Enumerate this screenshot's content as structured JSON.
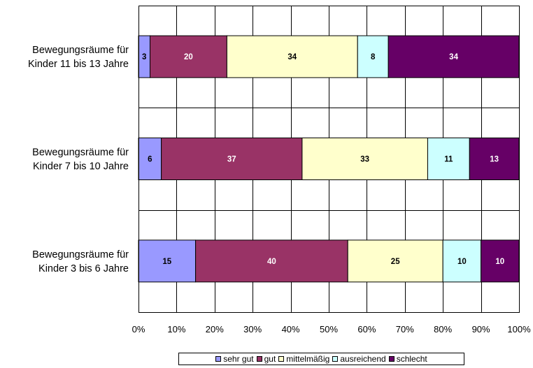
{
  "chart_data": {
    "type": "bar",
    "orientation": "horizontal",
    "stacked": "percent",
    "categories": [
      [
        "Bewegungsräume für",
        "Kinder 11 bis 13 Jahre"
      ],
      [
        "Bewegungsräume für",
        "Kinder 7 bis 10 Jahre"
      ],
      [
        "Bewegungsräume für",
        "Kinder 3 bis 6 Jahre"
      ]
    ],
    "series": [
      {
        "name": "sehr gut",
        "values": [
          3,
          6,
          15
        ],
        "color": "#9999ff",
        "label_color": "#000000"
      },
      {
        "name": "gut",
        "values": [
          20,
          37,
          40
        ],
        "color": "#993366",
        "label_color": "#ffffff"
      },
      {
        "name": "mittelmäßig",
        "values": [
          34,
          33,
          25
        ],
        "color": "#ffffcc",
        "label_color": "#000000"
      },
      {
        "name": "ausreichend",
        "values": [
          8,
          11,
          10
        ],
        "color": "#ccffff",
        "label_color": "#000000"
      },
      {
        "name": "schlecht",
        "values": [
          34,
          13,
          10
        ],
        "color": "#660066",
        "label_color": "#ffffff"
      }
    ],
    "xlim": [
      0,
      100
    ],
    "x_ticks": [
      "0%",
      "10%",
      "20%",
      "30%",
      "40%",
      "50%",
      "60%",
      "70%",
      "80%",
      "90%",
      "100%"
    ],
    "grid": true,
    "legend_position": "bottom"
  }
}
